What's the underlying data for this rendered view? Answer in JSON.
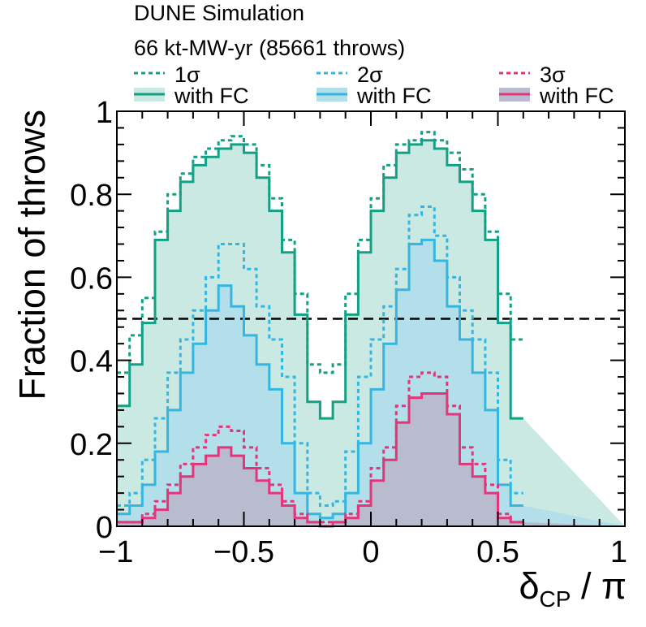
{
  "chart_data": {
    "type": "step",
    "header": {
      "line1": "DUNE Simulation",
      "line2": "66 kt-MW-yr (85661 throws)"
    },
    "xlabel": {
      "main": "δ",
      "sub": "CP",
      "rest": " / π"
    },
    "ylabel": "Fraction of throws",
    "xlim": [
      -1,
      1
    ],
    "ylim": [
      0,
      1
    ],
    "xticks": [
      {
        "v": -1,
        "label": "−1"
      },
      {
        "v": -0.5,
        "label": "−0.5"
      },
      {
        "v": 0,
        "label": "0"
      },
      {
        "v": 0.5,
        "label": "0.5"
      },
      {
        "v": 1,
        "label": "1"
      }
    ],
    "yticks": [
      {
        "v": 0,
        "label": "0"
      },
      {
        "v": 0.2,
        "label": "0.2"
      },
      {
        "v": 0.4,
        "label": "0.4"
      },
      {
        "v": 0.6,
        "label": "0.6"
      },
      {
        "v": 0.8,
        "label": "0.8"
      },
      {
        "v": 1,
        "label": "1"
      }
    ],
    "reference_line": 0.5,
    "bin_edges_start": -1,
    "bin_width": 0.05,
    "series": [
      {
        "name": "1σ",
        "style": "dashed",
        "color": "#14a085",
        "values": [
          0.37,
          0.46,
          0.55,
          0.71,
          0.8,
          0.85,
          0.89,
          0.91,
          0.93,
          0.94,
          0.92,
          0.87,
          0.79,
          0.69,
          0.56,
          0.39,
          0.37,
          0.39,
          0.56,
          0.69,
          0.79,
          0.87,
          0.92,
          0.93,
          0.95,
          0.93,
          0.9,
          0.86,
          0.8,
          0.71,
          0.56,
          0.45
        ]
      },
      {
        "name": "with FC",
        "style": "solid",
        "color": "#14a085",
        "fill": "#cbe9e3",
        "values": [
          0.29,
          0.39,
          0.49,
          0.69,
          0.76,
          0.83,
          0.87,
          0.89,
          0.91,
          0.92,
          0.9,
          0.84,
          0.76,
          0.66,
          0.51,
          0.3,
          0.26,
          0.3,
          0.51,
          0.66,
          0.76,
          0.84,
          0.9,
          0.92,
          0.93,
          0.91,
          0.87,
          0.83,
          0.76,
          0.69,
          0.49,
          0.26
        ]
      },
      {
        "name": "2σ",
        "style": "dashed",
        "color": "#34b6e0",
        "values": [
          0.05,
          0.08,
          0.16,
          0.26,
          0.37,
          0.45,
          0.52,
          0.6,
          0.68,
          0.68,
          0.62,
          0.53,
          0.45,
          0.36,
          0.2,
          0.08,
          0.05,
          0.06,
          0.18,
          0.36,
          0.45,
          0.53,
          0.62,
          0.75,
          0.77,
          0.7,
          0.6,
          0.52,
          0.45,
          0.37,
          0.16,
          0.08
        ]
      },
      {
        "name": "with FC",
        "style": "solid",
        "color": "#34b6e0",
        "fill": "#b2dfe9",
        "values": [
          0.03,
          0.05,
          0.1,
          0.18,
          0.28,
          0.37,
          0.44,
          0.52,
          0.58,
          0.53,
          0.46,
          0.39,
          0.33,
          0.2,
          0.08,
          0.03,
          0.02,
          0.03,
          0.08,
          0.2,
          0.33,
          0.44,
          0.57,
          0.68,
          0.69,
          0.64,
          0.53,
          0.45,
          0.37,
          0.28,
          0.1,
          0.05
        ]
      },
      {
        "name": "3σ",
        "style": "dashed",
        "color": "#e3357a",
        "values": [
          0.01,
          0.01,
          0.03,
          0.06,
          0.1,
          0.15,
          0.19,
          0.22,
          0.24,
          0.23,
          0.19,
          0.14,
          0.1,
          0.06,
          0.03,
          0.01,
          0.01,
          0.01,
          0.03,
          0.06,
          0.14,
          0.19,
          0.29,
          0.36,
          0.37,
          0.36,
          0.29,
          0.19,
          0.15,
          0.1,
          0.03,
          0.01
        ]
      },
      {
        "name": "with FC",
        "style": "solid",
        "color": "#e3357a",
        "fill": "#b9bbcf",
        "values": [
          0.01,
          0.01,
          0.02,
          0.04,
          0.08,
          0.12,
          0.15,
          0.17,
          0.19,
          0.17,
          0.14,
          0.11,
          0.08,
          0.05,
          0.02,
          0.01,
          0.0,
          0.01,
          0.02,
          0.05,
          0.11,
          0.16,
          0.25,
          0.31,
          0.32,
          0.32,
          0.27,
          0.15,
          0.12,
          0.08,
          0.02,
          0.01
        ]
      }
    ]
  }
}
